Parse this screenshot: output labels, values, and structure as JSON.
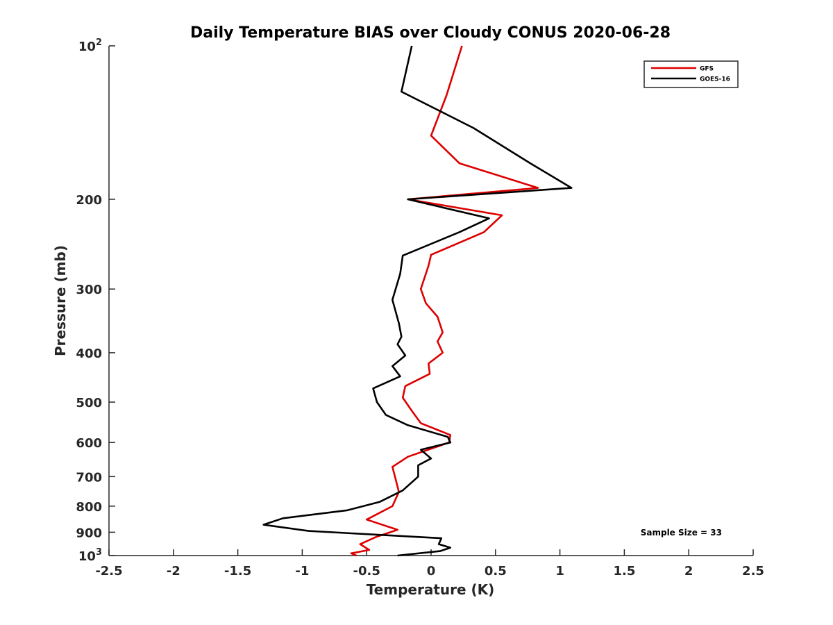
{
  "chart_data": {
    "type": "line",
    "title": "Daily Temperature BIAS over Cloudy CONUS 2020-06-28",
    "xlabel": "Temperature (K)",
    "ylabel": "Pressure (mb)",
    "xlim": [
      -2.5,
      2.5
    ],
    "ylim": [
      100,
      1000
    ],
    "y_scale": "log",
    "y_reversed": true,
    "grid": false,
    "legend_position": "top-right",
    "x_ticks": [
      {
        "value": -2.5,
        "label": "-2.5"
      },
      {
        "value": -2,
        "label": "-2"
      },
      {
        "value": -1.5,
        "label": "-1.5"
      },
      {
        "value": -1,
        "label": "-1"
      },
      {
        "value": -0.5,
        "label": "-0.5"
      },
      {
        "value": 0,
        "label": "0"
      },
      {
        "value": 0.5,
        "label": "0.5"
      },
      {
        "value": 1,
        "label": "1"
      },
      {
        "value": 1.5,
        "label": "1.5"
      },
      {
        "value": 2,
        "label": "2"
      },
      {
        "value": 2.5,
        "label": "2.5"
      }
    ],
    "y_ticks": [
      {
        "value": 100,
        "label": "10",
        "sup": "2"
      },
      {
        "value": 200,
        "label": "200"
      },
      {
        "value": 300,
        "label": "300"
      },
      {
        "value": 400,
        "label": "400"
      },
      {
        "value": 500,
        "label": "500"
      },
      {
        "value": 600,
        "label": "600"
      },
      {
        "value": 700,
        "label": "700"
      },
      {
        "value": 800,
        "label": "800"
      },
      {
        "value": 900,
        "label": "900"
      },
      {
        "value": 1000,
        "label": "10",
        "sup": "3"
      }
    ],
    "series": [
      {
        "name": "GFS",
        "color": "#dd0000",
        "points": [
          [
            0.24,
            100
          ],
          [
            0.12,
            125
          ],
          [
            0.0,
            150
          ],
          [
            0.22,
            170
          ],
          [
            0.83,
            190
          ],
          [
            -0.18,
            200
          ],
          [
            0.55,
            215
          ],
          [
            0.41,
            232
          ],
          [
            0.0,
            257
          ],
          [
            -0.02,
            270
          ],
          [
            -0.08,
            300
          ],
          [
            -0.04,
            320
          ],
          [
            0.05,
            340
          ],
          [
            0.09,
            365
          ],
          [
            0.05,
            380
          ],
          [
            0.09,
            400
          ],
          [
            -0.02,
            420
          ],
          [
            -0.01,
            440
          ],
          [
            -0.2,
            465
          ],
          [
            -0.22,
            490
          ],
          [
            -0.15,
            520
          ],
          [
            -0.08,
            550
          ],
          [
            0.15,
            580
          ],
          [
            0.14,
            600
          ],
          [
            -0.18,
            640
          ],
          [
            -0.3,
            670
          ],
          [
            -0.28,
            700
          ],
          [
            -0.25,
            750
          ],
          [
            -0.3,
            800
          ],
          [
            -0.5,
            850
          ],
          [
            -0.26,
            890
          ],
          [
            -0.43,
            920
          ],
          [
            -0.55,
            950
          ],
          [
            -0.48,
            975
          ],
          [
            -0.62,
            990
          ],
          [
            -0.58,
            1000
          ]
        ]
      },
      {
        "name": "GOES-16",
        "color": "#000000",
        "points": [
          [
            -0.15,
            100
          ],
          [
            -0.23,
            123
          ],
          [
            0.33,
            145
          ],
          [
            0.77,
            170
          ],
          [
            1.09,
            190
          ],
          [
            -0.18,
            200
          ],
          [
            0.45,
            218
          ],
          [
            0.22,
            232
          ],
          [
            -0.22,
            258
          ],
          [
            -0.24,
            280
          ],
          [
            -0.3,
            315
          ],
          [
            -0.25,
            350
          ],
          [
            -0.23,
            372
          ],
          [
            -0.26,
            385
          ],
          [
            -0.2,
            405
          ],
          [
            -0.3,
            425
          ],
          [
            -0.24,
            445
          ],
          [
            -0.45,
            470
          ],
          [
            -0.42,
            500
          ],
          [
            -0.35,
            530
          ],
          [
            -0.18,
            555
          ],
          [
            0.13,
            585
          ],
          [
            0.15,
            600
          ],
          [
            -0.08,
            620
          ],
          [
            0.0,
            645
          ],
          [
            -0.1,
            665
          ],
          [
            -0.1,
            700
          ],
          [
            -0.22,
            745
          ],
          [
            -0.4,
            785
          ],
          [
            -0.65,
            815
          ],
          [
            -1.15,
            845
          ],
          [
            -1.3,
            870
          ],
          [
            -0.95,
            895
          ],
          [
            0.08,
            925
          ],
          [
            0.06,
            950
          ],
          [
            0.15,
            965
          ],
          [
            0.07,
            980
          ],
          [
            -0.26,
            1000
          ]
        ]
      }
    ],
    "annotation": "Sample Size = 33"
  }
}
